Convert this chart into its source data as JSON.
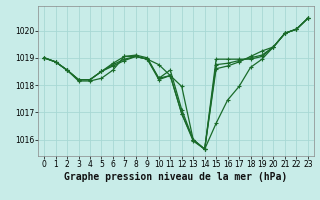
{
  "title": "Graphe pression niveau de la mer (hPa)",
  "background_color": "#c8ece8",
  "grid_color": "#a8d8d4",
  "line_color": "#1a6b2a",
  "xlim": [
    -0.5,
    23.5
  ],
  "ylim": [
    1015.4,
    1020.9
  ],
  "yticks": [
    1016,
    1017,
    1018,
    1019,
    1020
  ],
  "xticks": [
    0,
    1,
    2,
    3,
    4,
    5,
    6,
    7,
    8,
    9,
    10,
    11,
    12,
    13,
    14,
    15,
    16,
    17,
    18,
    19,
    20,
    21,
    22,
    23
  ],
  "series": [
    [
      1019.0,
      1018.85,
      1018.55,
      1018.15,
      1018.15,
      1018.25,
      1018.55,
      1019.05,
      1019.1,
      1019.0,
      1018.25,
      1018.55,
      1017.1,
      1016.0,
      1015.65,
      1016.6,
      1017.45,
      1017.95,
      1018.65,
      1018.95,
      1019.4,
      1019.9,
      1020.05,
      1020.45
    ],
    [
      1019.0,
      1018.85,
      1018.55,
      1018.2,
      1018.2,
      1018.5,
      1018.7,
      1018.9,
      1019.05,
      1018.95,
      1018.75,
      1018.35,
      1017.95,
      1016.0,
      1015.65,
      1018.95,
      1018.95,
      1018.95,
      1018.95,
      1019.05,
      1019.4,
      1019.9,
      1020.05,
      1020.45
    ],
    [
      1019.0,
      1018.85,
      1018.55,
      1018.2,
      1018.2,
      1018.5,
      1018.8,
      1019.05,
      1019.05,
      1018.95,
      1018.25,
      1018.35,
      1016.95,
      1015.95,
      1015.65,
      1018.6,
      1018.7,
      1018.85,
      1019.05,
      1019.25,
      1019.4,
      1019.9,
      1020.05,
      1020.45
    ],
    [
      1019.0,
      1018.85,
      1018.55,
      1018.2,
      1018.2,
      1018.5,
      1018.75,
      1018.95,
      1019.05,
      1018.95,
      1018.2,
      1018.35,
      1016.95,
      1016.0,
      1015.65,
      1018.75,
      1018.8,
      1018.9,
      1019.0,
      1019.1,
      1019.4,
      1019.9,
      1020.05,
      1020.45
    ]
  ],
  "marker": "+",
  "markersize": 3.5,
  "linewidth": 0.9,
  "title_fontsize": 7,
  "tick_fontsize": 5.5,
  "ylabel_fontsize": 6
}
